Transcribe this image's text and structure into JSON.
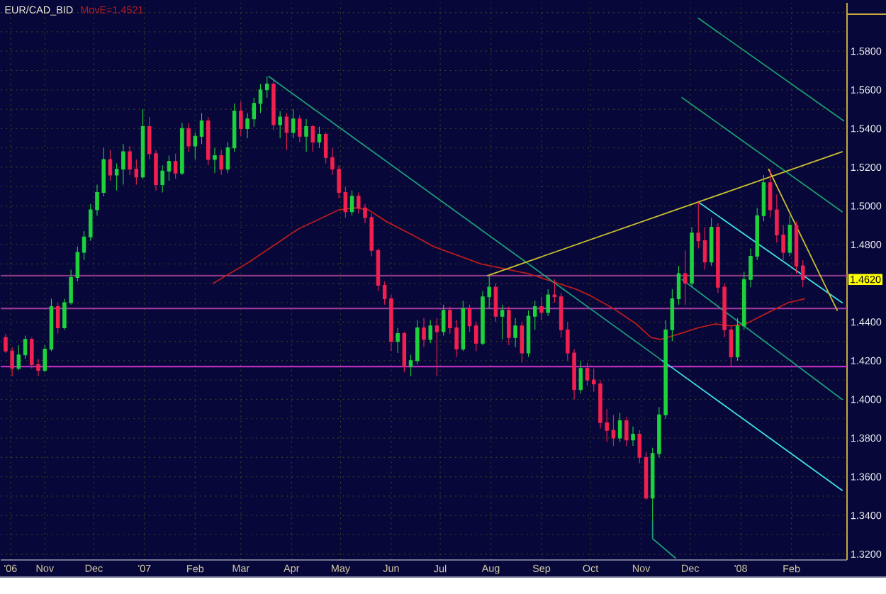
{
  "chart_data": {
    "type": "candlestick",
    "title": "EUR/CAD_BID",
    "xlim": [
      "2006-10-05",
      "2008-03-06"
    ],
    "xticks": [
      {
        "value": "2006-10-11",
        "label": "'06"
      },
      {
        "value": "2006-11-01",
        "label": "Nov"
      },
      {
        "value": "2006-12-01",
        "label": "Dec"
      },
      {
        "value": "2007-01-01",
        "label": "'07"
      },
      {
        "value": "2007-02-01",
        "label": "Feb"
      },
      {
        "value": "2007-03-01",
        "label": "Mar"
      },
      {
        "value": "2007-04-01",
        "label": "Apr"
      },
      {
        "value": "2007-05-01",
        "label": "May"
      },
      {
        "value": "2007-06-01",
        "label": "Jun"
      },
      {
        "value": "2007-07-01",
        "label": "Jul"
      },
      {
        "value": "2007-08-01",
        "label": "Aug"
      },
      {
        "value": "2007-09-01",
        "label": "Sep"
      },
      {
        "value": "2007-10-01",
        "label": "Oct"
      },
      {
        "value": "2007-11-01",
        "label": "Nov"
      },
      {
        "value": "2007-12-01",
        "label": "Dec"
      },
      {
        "value": "2008-01-01",
        "label": "'08"
      },
      {
        "value": "2008-02-01",
        "label": "Feb"
      }
    ],
    "ylim": [
      1.317,
      1.605
    ],
    "yticks": [
      {
        "value": 1.32,
        "label": "1.3200"
      },
      {
        "value": 1.33,
        "label": null
      },
      {
        "value": 1.34,
        "label": "1.3400"
      },
      {
        "value": 1.35,
        "label": null
      },
      {
        "value": 1.36,
        "label": "1.3600"
      },
      {
        "value": 1.37,
        "label": null
      },
      {
        "value": 1.38,
        "label": "1.3800"
      },
      {
        "value": 1.39,
        "label": null
      },
      {
        "value": 1.4,
        "label": "1.4000"
      },
      {
        "value": 1.41,
        "label": null
      },
      {
        "value": 1.42,
        "label": "1.4200"
      },
      {
        "value": 1.43,
        "label": null
      },
      {
        "value": 1.44,
        "label": "1.4400"
      },
      {
        "value": 1.45,
        "label": null
      },
      {
        "value": 1.46,
        "label": null
      },
      {
        "value": 1.47,
        "label": null
      },
      {
        "value": 1.48,
        "label": "1.4800"
      },
      {
        "value": 1.49,
        "label": null
      },
      {
        "value": 1.5,
        "label": "1.5000"
      },
      {
        "value": 1.51,
        "label": null
      },
      {
        "value": 1.52,
        "label": "1.5200"
      },
      {
        "value": 1.53,
        "label": null
      },
      {
        "value": 1.54,
        "label": "1.5400"
      },
      {
        "value": 1.55,
        "label": null
      },
      {
        "value": 1.56,
        "label": "1.5600"
      },
      {
        "value": 1.57,
        "label": null
      },
      {
        "value": 1.58,
        "label": "1.5800"
      },
      {
        "value": 1.59,
        "label": null
      },
      {
        "value": 1.6,
        "label": null
      }
    ],
    "grid": true,
    "ref_lines": [
      {
        "axis": "y",
        "value": 1.464,
        "color": "#8e3a86"
      },
      {
        "axis": "y",
        "value": 1.447,
        "color": "#9a3a9a"
      },
      {
        "axis": "y",
        "value": 1.417,
        "color": "#c02ec0"
      }
    ],
    "annotations": [
      {
        "text": "1.4620",
        "y": 1.462
      }
    ],
    "series": [
      {
        "x": [
          "2006-10-08",
          "2006-10-12",
          "2006-10-16",
          "2006-10-20",
          "2006-10-24",
          "2006-10-28",
          "2006-11-01",
          "2006-11-05",
          "2006-11-09",
          "2006-11-13",
          "2006-11-17",
          "2006-11-21",
          "2006-11-25",
          "2006-11-29",
          "2006-12-03",
          "2006-12-07",
          "2006-12-11",
          "2006-12-15",
          "2006-12-19",
          "2006-12-23",
          "2006-12-27",
          "2006-12-31",
          "2007-01-04",
          "2007-01-08",
          "2007-01-12",
          "2007-01-16",
          "2007-01-20",
          "2007-01-24",
          "2007-01-28",
          "2007-02-01",
          "2007-02-05",
          "2007-02-09",
          "2007-02-13",
          "2007-02-17",
          "2007-02-21",
          "2007-02-25",
          "2007-03-01",
          "2007-03-05",
          "2007-03-09",
          "2007-03-13",
          "2007-03-17",
          "2007-03-21",
          "2007-03-25",
          "2007-03-29",
          "2007-04-02",
          "2007-04-06",
          "2007-04-10",
          "2007-04-14",
          "2007-04-18",
          "2007-04-22",
          "2007-04-26",
          "2007-04-30",
          "2007-05-04",
          "2007-05-08",
          "2007-05-12",
          "2007-05-16",
          "2007-05-20",
          "2007-05-24",
          "2007-05-28",
          "2007-06-01",
          "2007-06-05",
          "2007-06-09",
          "2007-06-13",
          "2007-06-17",
          "2007-06-21",
          "2007-06-25",
          "2007-06-29",
          "2007-07-03",
          "2007-07-07",
          "2007-07-11",
          "2007-07-15",
          "2007-07-19",
          "2007-07-23",
          "2007-07-27",
          "2007-07-31",
          "2007-08-04",
          "2007-08-08",
          "2007-08-12",
          "2007-08-16",
          "2007-08-20",
          "2007-08-24",
          "2007-08-28",
          "2007-09-01",
          "2007-09-05",
          "2007-09-09",
          "2007-09-13",
          "2007-09-17",
          "2007-09-21",
          "2007-09-25",
          "2007-09-29",
          "2007-10-03",
          "2007-10-07",
          "2007-10-11",
          "2007-10-15",
          "2007-10-19",
          "2007-10-23",
          "2007-10-27",
          "2007-10-31",
          "2007-11-04",
          "2007-11-08",
          "2007-11-12",
          "2007-11-16",
          "2007-11-20",
          "2007-11-24",
          "2007-11-28",
          "2007-12-02",
          "2007-12-06",
          "2007-12-10",
          "2007-12-14",
          "2007-12-18",
          "2007-12-22",
          "2007-12-26",
          "2007-12-30",
          "2008-01-03",
          "2008-01-07",
          "2008-01-11",
          "2008-01-15",
          "2008-01-19",
          "2008-01-23",
          "2008-01-27",
          "2008-01-31",
          "2008-02-04",
          "2008-02-08"
        ],
        "ohlc": [
          [
            1.432,
            1.434,
            1.424,
            1.425
          ],
          [
            1.425,
            1.427,
            1.412,
            1.416
          ],
          [
            1.416,
            1.428,
            1.415,
            1.423
          ],
          [
            1.423,
            1.433,
            1.421,
            1.431
          ],
          [
            1.431,
            1.432,
            1.416,
            1.418
          ],
          [
            1.418,
            1.421,
            1.412,
            1.415
          ],
          [
            1.415,
            1.428,
            1.414,
            1.426
          ],
          [
            1.426,
            1.452,
            1.425,
            1.448
          ],
          [
            1.448,
            1.45,
            1.434,
            1.437
          ],
          [
            1.437,
            1.452,
            1.436,
            1.45
          ],
          [
            1.45,
            1.467,
            1.449,
            1.463
          ],
          [
            1.463,
            1.479,
            1.461,
            1.476
          ],
          [
            1.476,
            1.487,
            1.472,
            1.484
          ],
          [
            1.484,
            1.501,
            1.482,
            1.498
          ],
          [
            1.498,
            1.511,
            1.495,
            1.507
          ],
          [
            1.507,
            1.53,
            1.505,
            1.524
          ],
          [
            1.524,
            1.529,
            1.513,
            1.516
          ],
          [
            1.516,
            1.522,
            1.508,
            1.519
          ],
          [
            1.519,
            1.532,
            1.511,
            1.528
          ],
          [
            1.528,
            1.531,
            1.516,
            1.519
          ],
          [
            1.519,
            1.524,
            1.511,
            1.515
          ],
          [
            1.515,
            1.55,
            1.514,
            1.541
          ],
          [
            1.541,
            1.546,
            1.524,
            1.527
          ],
          [
            1.527,
            1.529,
            1.508,
            1.511
          ],
          [
            1.511,
            1.521,
            1.507,
            1.518
          ],
          [
            1.518,
            1.526,
            1.513,
            1.523
          ],
          [
            1.523,
            1.527,
            1.514,
            1.517
          ],
          [
            1.517,
            1.543,
            1.516,
            1.54
          ],
          [
            1.54,
            1.543,
            1.528,
            1.531
          ],
          [
            1.531,
            1.538,
            1.524,
            1.536
          ],
          [
            1.536,
            1.548,
            1.532,
            1.544
          ],
          [
            1.544,
            1.546,
            1.521,
            1.524
          ],
          [
            1.524,
            1.53,
            1.517,
            1.526
          ],
          [
            1.526,
            1.529,
            1.516,
            1.519
          ],
          [
            1.519,
            1.533,
            1.517,
            1.53
          ],
          [
            1.53,
            1.553,
            1.528,
            1.549
          ],
          [
            1.549,
            1.554,
            1.536,
            1.54
          ],
          [
            1.54,
            1.548,
            1.535,
            1.545
          ],
          [
            1.545,
            1.556,
            1.541,
            1.553
          ],
          [
            1.553,
            1.563,
            1.548,
            1.56
          ],
          [
            1.56,
            1.567,
            1.556,
            1.563
          ],
          [
            1.563,
            1.566,
            1.539,
            1.542
          ],
          [
            1.542,
            1.549,
            1.535,
            1.546
          ],
          [
            1.546,
            1.548,
            1.529,
            1.538
          ],
          [
            1.538,
            1.55,
            1.535,
            1.545
          ],
          [
            1.545,
            1.547,
            1.533,
            1.536
          ],
          [
            1.536,
            1.545,
            1.528,
            1.541
          ],
          [
            1.541,
            1.542,
            1.528,
            1.533
          ],
          [
            1.533,
            1.541,
            1.53,
            1.537
          ],
          [
            1.537,
            1.538,
            1.522,
            1.525
          ],
          [
            1.525,
            1.53,
            1.516,
            1.519
          ],
          [
            1.519,
            1.521,
            1.504,
            1.507
          ],
          [
            1.507,
            1.51,
            1.494,
            1.497
          ],
          [
            1.497,
            1.508,
            1.495,
            1.505
          ],
          [
            1.505,
            1.507,
            1.496,
            1.499
          ],
          [
            1.499,
            1.501,
            1.491,
            1.494
          ],
          [
            1.494,
            1.496,
            1.474,
            1.477
          ],
          [
            1.477,
            1.478,
            1.456,
            1.459
          ],
          [
            1.459,
            1.461,
            1.449,
            1.452
          ],
          [
            1.452,
            1.454,
            1.425,
            1.43
          ],
          [
            1.43,
            1.437,
            1.424,
            1.434
          ],
          [
            1.434,
            1.435,
            1.414,
            1.417
          ],
          [
            1.417,
            1.423,
            1.412,
            1.42
          ],
          [
            1.42,
            1.441,
            1.418,
            1.437
          ],
          [
            1.437,
            1.442,
            1.427,
            1.431
          ],
          [
            1.431,
            1.441,
            1.429,
            1.438
          ],
          [
            1.438,
            1.442,
            1.412,
            1.435
          ],
          [
            1.435,
            1.449,
            1.433,
            1.446
          ],
          [
            1.446,
            1.448,
            1.434,
            1.437
          ],
          [
            1.437,
            1.441,
            1.422,
            1.426
          ],
          [
            1.426,
            1.451,
            1.425,
            1.447
          ],
          [
            1.447,
            1.449,
            1.435,
            1.438
          ],
          [
            1.438,
            1.44,
            1.425,
            1.429
          ],
          [
            1.429,
            1.456,
            1.428,
            1.453
          ],
          [
            1.453,
            1.464,
            1.447,
            1.458
          ],
          [
            1.458,
            1.46,
            1.44,
            1.443
          ],
          [
            1.443,
            1.449,
            1.431,
            1.446
          ],
          [
            1.446,
            1.448,
            1.428,
            1.432
          ],
          [
            1.432,
            1.442,
            1.427,
            1.438
          ],
          [
            1.438,
            1.44,
            1.419,
            1.424
          ],
          [
            1.424,
            1.446,
            1.422,
            1.443
          ],
          [
            1.443,
            1.451,
            1.436,
            1.448
          ],
          [
            1.448,
            1.453,
            1.441,
            1.445
          ],
          [
            1.445,
            1.457,
            1.443,
            1.454
          ],
          [
            1.454,
            1.462,
            1.45,
            1.453
          ],
          [
            1.453,
            1.455,
            1.432,
            1.436
          ],
          [
            1.436,
            1.44,
            1.42,
            1.424
          ],
          [
            1.424,
            1.426,
            1.4,
            1.405
          ],
          [
            1.405,
            1.42,
            1.403,
            1.416
          ],
          [
            1.416,
            1.419,
            1.407,
            1.41
          ],
          [
            1.41,
            1.416,
            1.404,
            1.408
          ],
          [
            1.408,
            1.41,
            1.385,
            1.388
          ],
          [
            1.388,
            1.395,
            1.378,
            1.384
          ],
          [
            1.384,
            1.392,
            1.376,
            1.38
          ],
          [
            1.38,
            1.393,
            1.378,
            1.389
          ],
          [
            1.389,
            1.391,
            1.376,
            1.379
          ],
          [
            1.379,
            1.386,
            1.376,
            1.382
          ],
          [
            1.382,
            1.384,
            1.367,
            1.37
          ],
          [
            1.37,
            1.373,
            1.348,
            1.349
          ],
          [
            1.349,
            1.375,
            1.337,
            1.372
          ],
          [
            1.372,
            1.396,
            1.37,
            1.392
          ],
          [
            1.392,
            1.441,
            1.39,
            1.436
          ],
          [
            1.436,
            1.457,
            1.43,
            1.452
          ],
          [
            1.452,
            1.469,
            1.449,
            1.465
          ],
          [
            1.465,
            1.477,
            1.449,
            1.46
          ],
          [
            1.46,
            1.489,
            1.458,
            1.486
          ],
          [
            1.486,
            1.502,
            1.478,
            1.482
          ],
          [
            1.482,
            1.489,
            1.467,
            1.471
          ],
          [
            1.471,
            1.494,
            1.469,
            1.489
          ],
          [
            1.489,
            1.491,
            1.455,
            1.458
          ],
          [
            1.458,
            1.46,
            1.432,
            1.436
          ],
          [
            1.436,
            1.438,
            1.417,
            1.422
          ],
          [
            1.422,
            1.442,
            1.42,
            1.438
          ],
          [
            1.438,
            1.466,
            1.436,
            1.462
          ],
          [
            1.462,
            1.478,
            1.458,
            1.474
          ],
          [
            1.474,
            1.499,
            1.472,
            1.495
          ],
          [
            1.495,
            1.516,
            1.492,
            1.512
          ],
          [
            1.512,
            1.519,
            1.494,
            1.498
          ],
          [
            1.498,
            1.506,
            1.481,
            1.485
          ],
          [
            1.485,
            1.49,
            1.472,
            1.476
          ],
          [
            1.476,
            1.495,
            1.474,
            1.49
          ],
          [
            1.49,
            1.492,
            1.465,
            1.469
          ],
          [
            1.469,
            1.472,
            1.458,
            1.462
          ]
        ],
        "colors": [
          "#f2204e",
          "#f2204e",
          "#1ed23c",
          "#1ed23c",
          "#f2204e",
          "#f2204e",
          "#1ed23c",
          "#1ed23c",
          "#f2204e",
          "#1ed23c",
          "#1ed23c",
          "#1ed23c",
          "#1ed23c",
          "#1ed23c",
          "#1ed23c",
          "#1ed23c",
          "#f2204e",
          "#1ed23c",
          "#1ed23c",
          "#f2204e",
          "#f2204e",
          "#1ed23c",
          "#f2204e",
          "#f2204e",
          "#1ed23c",
          "#1ed23c",
          "#f2204e",
          "#1ed23c",
          "#f2204e",
          "#1ed23c",
          "#1ed23c",
          "#f2204e",
          "#1ed23c",
          "#f2204e",
          "#1ed23c",
          "#1ed23c",
          "#f2204e",
          "#1ed23c",
          "#1ed23c",
          "#1ed23c",
          "#1ed23c",
          "#f2204e",
          "#1ed23c",
          "#f2204e",
          "#1ed23c",
          "#f2204e",
          "#1ed23c",
          "#f2204e",
          "#1ed23c",
          "#f2204e",
          "#f2204e",
          "#f2204e",
          "#f2204e",
          "#1ed23c",
          "#f2204e",
          "#f2204e",
          "#f2204e",
          "#f2204e",
          "#f2204e",
          "#f2204e",
          "#1ed23c",
          "#f2204e",
          "#1ed23c",
          "#1ed23c",
          "#f2204e",
          "#1ed23c",
          "#f2204e",
          "#1ed23c",
          "#f2204e",
          "#f2204e",
          "#1ed23c",
          "#f2204e",
          "#f2204e",
          "#1ed23c",
          "#1ed23c",
          "#f2204e",
          "#1ed23c",
          "#f2204e",
          "#1ed23c",
          "#f2204e",
          "#1ed23c",
          "#1ed23c",
          "#f2204e",
          "#1ed23c",
          "#f2204e",
          "#f2204e",
          "#f2204e",
          "#f2204e",
          "#1ed23c",
          "#f2204e",
          "#f2204e",
          "#f2204e",
          "#f2204e",
          "#f2204e",
          "#1ed23c",
          "#f2204e",
          "#1ed23c",
          "#f2204e",
          "#f2204e",
          "#1ed23c",
          "#1ed23c",
          "#1ed23c",
          "#1ed23c",
          "#1ed23c",
          "#f2204e",
          "#1ed23c",
          "#f2204e",
          "#f2204e",
          "#1ed23c",
          "#f2204e",
          "#f2204e",
          "#f2204e",
          "#1ed23c",
          "#1ed23c",
          "#1ed23c",
          "#1ed23c",
          "#1ed23c",
          "#f2204e",
          "#f2204e",
          "#f2204e",
          "#1ed23c",
          "#f2204e",
          "#f2204e"
        ]
      },
      {
        "type": "line",
        "name": "MovE=1.4521",
        "color": "#b81c1c",
        "x": [
          "2007-02-12",
          "2007-03-06",
          "2007-04-05",
          "2007-04-30",
          "2007-05-10",
          "2007-05-18",
          "2007-05-29",
          "2007-06-14",
          "2007-06-27",
          "2007-07-26",
          "2007-08-24",
          "2007-09-22",
          "2007-09-30",
          "2007-10-15",
          "2007-10-29",
          "2007-11-07",
          "2007-11-13",
          "2007-11-21",
          "2007-12-06",
          "2007-12-16",
          "2007-12-26",
          "2008-01-04",
          "2008-01-18",
          "2008-01-30",
          "2008-02-09"
        ],
        "values": [
          1.46,
          1.471,
          1.488,
          1.498,
          1.499,
          1.498,
          1.492,
          1.485,
          1.479,
          1.47,
          1.465,
          1.457,
          1.454,
          1.447,
          1.439,
          1.432,
          1.431,
          1.433,
          1.437,
          1.439,
          1.438,
          1.439,
          1.445,
          1.45,
          1.452
        ]
      },
      {
        "type": "line",
        "color": "#1c9c78",
        "x": [
          "2007-03-18",
          "2007-11-14"
        ],
        "values": [
          1.567,
          1.42
        ]
      },
      {
        "type": "line",
        "color": "#3ce0e0",
        "x": [
          "2007-11-14",
          "2008-03-03"
        ],
        "values": [
          1.42,
          1.353
        ]
      },
      {
        "type": "line",
        "color": "#1c9c78",
        "x": [
          "2007-11-08",
          "2007-11-08",
          "2007-11-22"
        ],
        "values": [
          1.337,
          1.328,
          1.318
        ]
      },
      {
        "type": "line",
        "color": "#3ce0e0",
        "x": [
          "2007-12-06",
          "2008-03-03"
        ],
        "values": [
          1.502,
          1.45
        ]
      },
      {
        "type": "line",
        "color": "#1c9c78",
        "x": [
          "2007-11-26",
          "2008-03-03"
        ],
        "values": [
          1.462,
          1.4
        ]
      },
      {
        "type": "line",
        "color": "#1a9c6c",
        "x": [
          "2007-12-06",
          "2008-03-04"
        ],
        "values": [
          1.597,
          1.544
        ]
      },
      {
        "type": "line",
        "color": "#1a9c6c",
        "x": [
          "2007-11-26",
          "2008-03-03"
        ],
        "values": [
          1.556,
          1.497
        ]
      },
      {
        "type": "line",
        "color": "#c8c030",
        "x": [
          "2007-07-30",
          "2008-03-03"
        ],
        "values": [
          1.464,
          1.528
        ]
      },
      {
        "type": "line",
        "color": "#c8c030",
        "x": [
          "2008-01-18",
          "2008-02-29"
        ],
        "values": [
          1.519,
          1.446
        ]
      }
    ]
  }
}
